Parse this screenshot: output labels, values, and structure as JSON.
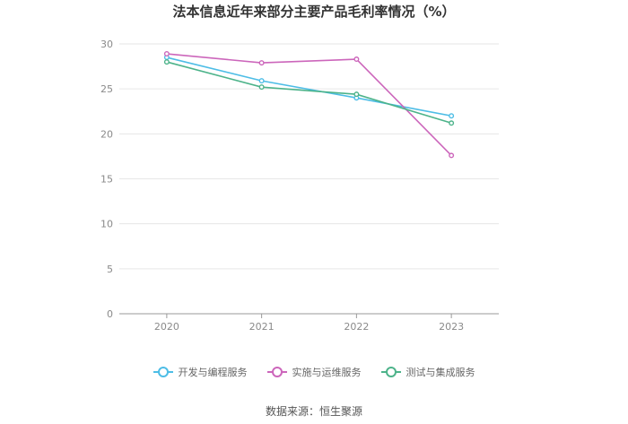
{
  "chart_data": {
    "type": "line",
    "title": "法本信息近年来部分主要产品毛利率情况（%）",
    "xlabel": "",
    "ylabel": "",
    "categories": [
      "2020",
      "2021",
      "2022",
      "2023"
    ],
    "ylim": [
      0,
      30
    ],
    "yticks": [
      0,
      5,
      10,
      15,
      20,
      25,
      30
    ],
    "grid": true,
    "legend_position": "bottom",
    "series": [
      {
        "name": "开发与编程服务",
        "color": "#4dbde6",
        "values": [
          28.5,
          25.9,
          24.0,
          22.0
        ]
      },
      {
        "name": "实施与运维服务",
        "color": "#cc66bb",
        "values": [
          28.9,
          27.9,
          28.3,
          17.6
        ]
      },
      {
        "name": "测试与集成服务",
        "color": "#4db38a",
        "values": [
          28.0,
          25.2,
          24.4,
          21.2
        ]
      }
    ]
  },
  "source_text": "数据来源：恒生聚源"
}
